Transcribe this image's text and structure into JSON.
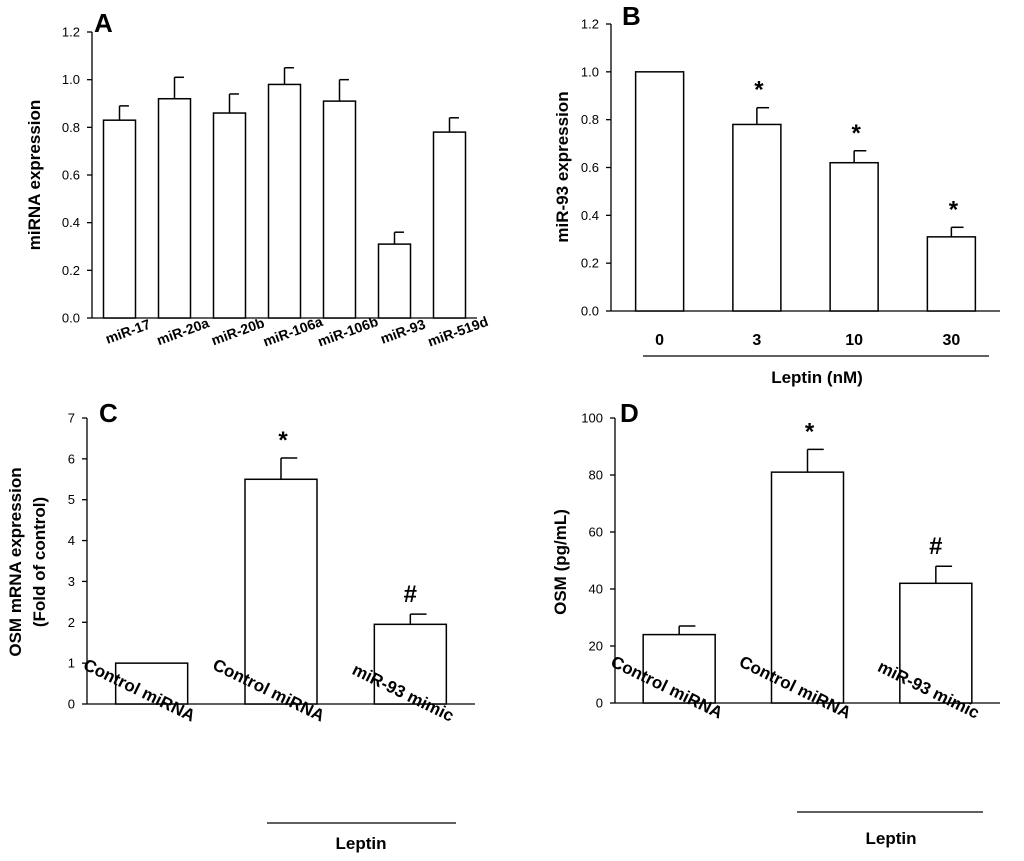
{
  "chart_data": [
    {
      "panel": "A",
      "type": "bar",
      "title": "",
      "xlabel": "",
      "ylabel": "miRNA expression",
      "ylim": [
        0,
        1.2
      ],
      "yticks": [
        0,
        0.2,
        0.4,
        0.6,
        0.8,
        1.0,
        1.2
      ],
      "ytick_labels": [
        "0.0",
        "0.2",
        "0.4",
        "0.6",
        "0.8",
        "1.0",
        "1.2"
      ],
      "categories": [
        "miR-17",
        "miR-20a",
        "miR-20b",
        "miR-106a",
        "miR-106b",
        "miR-93",
        "miR-519d"
      ],
      "values": [
        0.83,
        0.92,
        0.86,
        0.98,
        0.91,
        0.31,
        0.78
      ],
      "errors": [
        0.06,
        0.09,
        0.08,
        0.07,
        0.09,
        0.05,
        0.06
      ],
      "annotations": [
        "",
        "",
        "",
        "",
        "",
        "",
        ""
      ],
      "group_label": ""
    },
    {
      "panel": "B",
      "type": "bar",
      "title": "",
      "xlabel": "Leptin (nM)",
      "ylabel": "miR-93 expression",
      "ylim": [
        0,
        1.2
      ],
      "yticks": [
        0,
        0.2,
        0.4,
        0.6,
        0.8,
        1.0,
        1.2
      ],
      "ytick_labels": [
        "0.0",
        "0.2",
        "0.4",
        "0.6",
        "0.8",
        "1.0",
        "1.2"
      ],
      "categories": [
        "0",
        "3",
        "10",
        "30"
      ],
      "values": [
        1.0,
        0.78,
        0.62,
        0.31
      ],
      "errors": [
        0,
        0.07,
        0.05,
        0.04
      ],
      "annotations": [
        "",
        "*",
        "*",
        "*"
      ],
      "group_label": "Leptin (nM)"
    },
    {
      "panel": "C",
      "type": "bar",
      "title": "",
      "xlabel": "",
      "ylabel": [
        "OSM mRNA expression",
        "(Fold of control)"
      ],
      "ylim": [
        0,
        7
      ],
      "yticks": [
        0,
        1,
        2,
        3,
        4,
        5,
        6,
        7
      ],
      "ytick_labels": [
        "0",
        "1",
        "2",
        "3",
        "4",
        "5",
        "6",
        "7"
      ],
      "categories": [
        "Control miRNA",
        "Control miRNA",
        "miR-93 mimic"
      ],
      "values": [
        1.0,
        5.5,
        1.95
      ],
      "errors": [
        0,
        0.52,
        0.25
      ],
      "annotations": [
        "",
        "*",
        "#"
      ],
      "group_label": "Leptin"
    },
    {
      "panel": "D",
      "type": "bar",
      "title": "",
      "xlabel": "",
      "ylabel": "OSM (pg/mL)",
      "ylim": [
        0,
        100
      ],
      "yticks": [
        0,
        20,
        40,
        60,
        80,
        100
      ],
      "ytick_labels": [
        "0",
        "20",
        "40",
        "60",
        "80",
        "100"
      ],
      "categories": [
        "Control miRNA",
        "Control miRNA",
        "miR-93 mimic"
      ],
      "values": [
        24,
        81,
        42
      ],
      "errors": [
        3,
        8,
        6
      ],
      "annotations": [
        "",
        "*",
        "#"
      ],
      "group_label": "Leptin"
    }
  ]
}
